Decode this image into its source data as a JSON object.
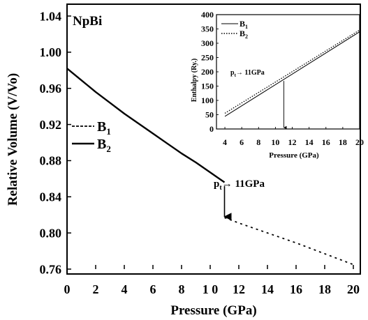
{
  "chart_data": [
    {
      "type": "line",
      "label": "NpBi",
      "xlabel": "Pressure (GPa)",
      "ylabel": "Relative Volume (V/Vo)",
      "xlim": [
        0,
        20
      ],
      "ylim": [
        0.76,
        1.04
      ],
      "xticks": [
        "0",
        "2",
        "4",
        "6",
        "8",
        "1 0",
        "12",
        "14",
        "16",
        "18",
        "20"
      ],
      "yticks": [
        "0.76",
        "0.80",
        "0.84",
        "0.88",
        "0.92",
        "0.96",
        "1.00",
        "1.04"
      ],
      "legend_position": "middle-left",
      "series": [
        {
          "name": "B1",
          "style": "dotted",
          "x": [
            11,
            12,
            14,
            16,
            18,
            20
          ],
          "y": [
            0.817,
            0.811,
            0.8,
            0.789,
            0.777,
            0.765
          ]
        },
        {
          "name": "B2",
          "style": "solid",
          "x": [
            0,
            1,
            2,
            3,
            4,
            5,
            6,
            7,
            8,
            9,
            10,
            11
          ],
          "y": [
            0.982,
            0.969,
            0.956,
            0.944,
            0.932,
            0.921,
            0.91,
            0.899,
            0.888,
            0.878,
            0.867,
            0.856
          ]
        }
      ],
      "annotation": {
        "text": "→ 11GPa",
        "symbol_letter": "p",
        "symbol_sub": "t",
        "arrow_x": 11,
        "arrow_from": 0.852,
        "arrow_to": 0.818
      },
      "legend_labels": {
        "b1_letter": "B",
        "b1_sub": "1",
        "b2_letter": "B",
        "b2_sub": "2"
      }
    },
    {
      "type": "line",
      "inset": true,
      "xlabel": "Pressure (GPa)",
      "ylabel": "Enthalpy (Ry.)",
      "xlim": [
        3,
        20
      ],
      "ylim": [
        0,
        400
      ],
      "xticks": [
        "4",
        "6",
        "8",
        "10",
        "12",
        "14",
        "16",
        "18",
        "20"
      ],
      "yticks": [
        "0",
        "50",
        "100",
        "150",
        "200",
        "250",
        "300",
        "350",
        "400"
      ],
      "legend_position": "top-left",
      "series": [
        {
          "name": "B1",
          "style": "solid",
          "x": [
            4,
            20
          ],
          "y": [
            44,
            340
          ]
        },
        {
          "name": "B2",
          "style": "dotted",
          "x": [
            4,
            20
          ],
          "y": [
            55,
            346
          ]
        }
      ],
      "annotation": {
        "text": "→ 11GPa",
        "symbol_letter": "p",
        "symbol_sub": "t",
        "arrow_x": 11,
        "arrow_from": 168,
        "arrow_to": 5
      },
      "legend_labels": {
        "b1_letter": "B",
        "b1_sub": "1",
        "b2_letter": "B",
        "b2_sub": "2"
      }
    }
  ]
}
